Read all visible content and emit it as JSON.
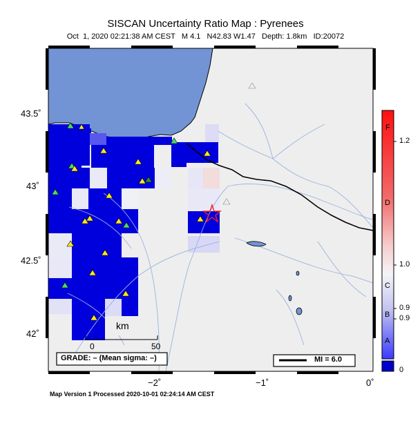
{
  "title": "SISCAN Uncertainty Ratio Map : Pyrenees",
  "subtitle": "Oct  1, 2020 02:21:38 AM CEST   M 4.1   N42.83 W1.47   Depth: 1.8km   ID:20072",
  "footer": "Map Version 1 Processed 2020-10-01 02:24:14 AM CEST",
  "lat_labels": [
    "43.5˚",
    "43˚",
    "42.5˚",
    "42˚"
  ],
  "lon_labels": [
    "−2˚",
    "−1˚",
    "0˚"
  ],
  "scale": {
    "unit": "km",
    "start": "0",
    "end": "50"
  },
  "grade_box": "GRADE: – (Mean sigma: –)",
  "mi_box": "MI = 6.0",
  "colorbar": {
    "letters": [
      "F",
      "D",
      "C",
      "B",
      "A"
    ],
    "values": [
      "1.2",
      "1.0",
      "0.9",
      "0.9",
      "0"
    ]
  },
  "colors": {
    "sea": "#7293d4",
    "land": "#eeeeee",
    "grid_blue": "#0000dd",
    "star": "#ff2020"
  }
}
